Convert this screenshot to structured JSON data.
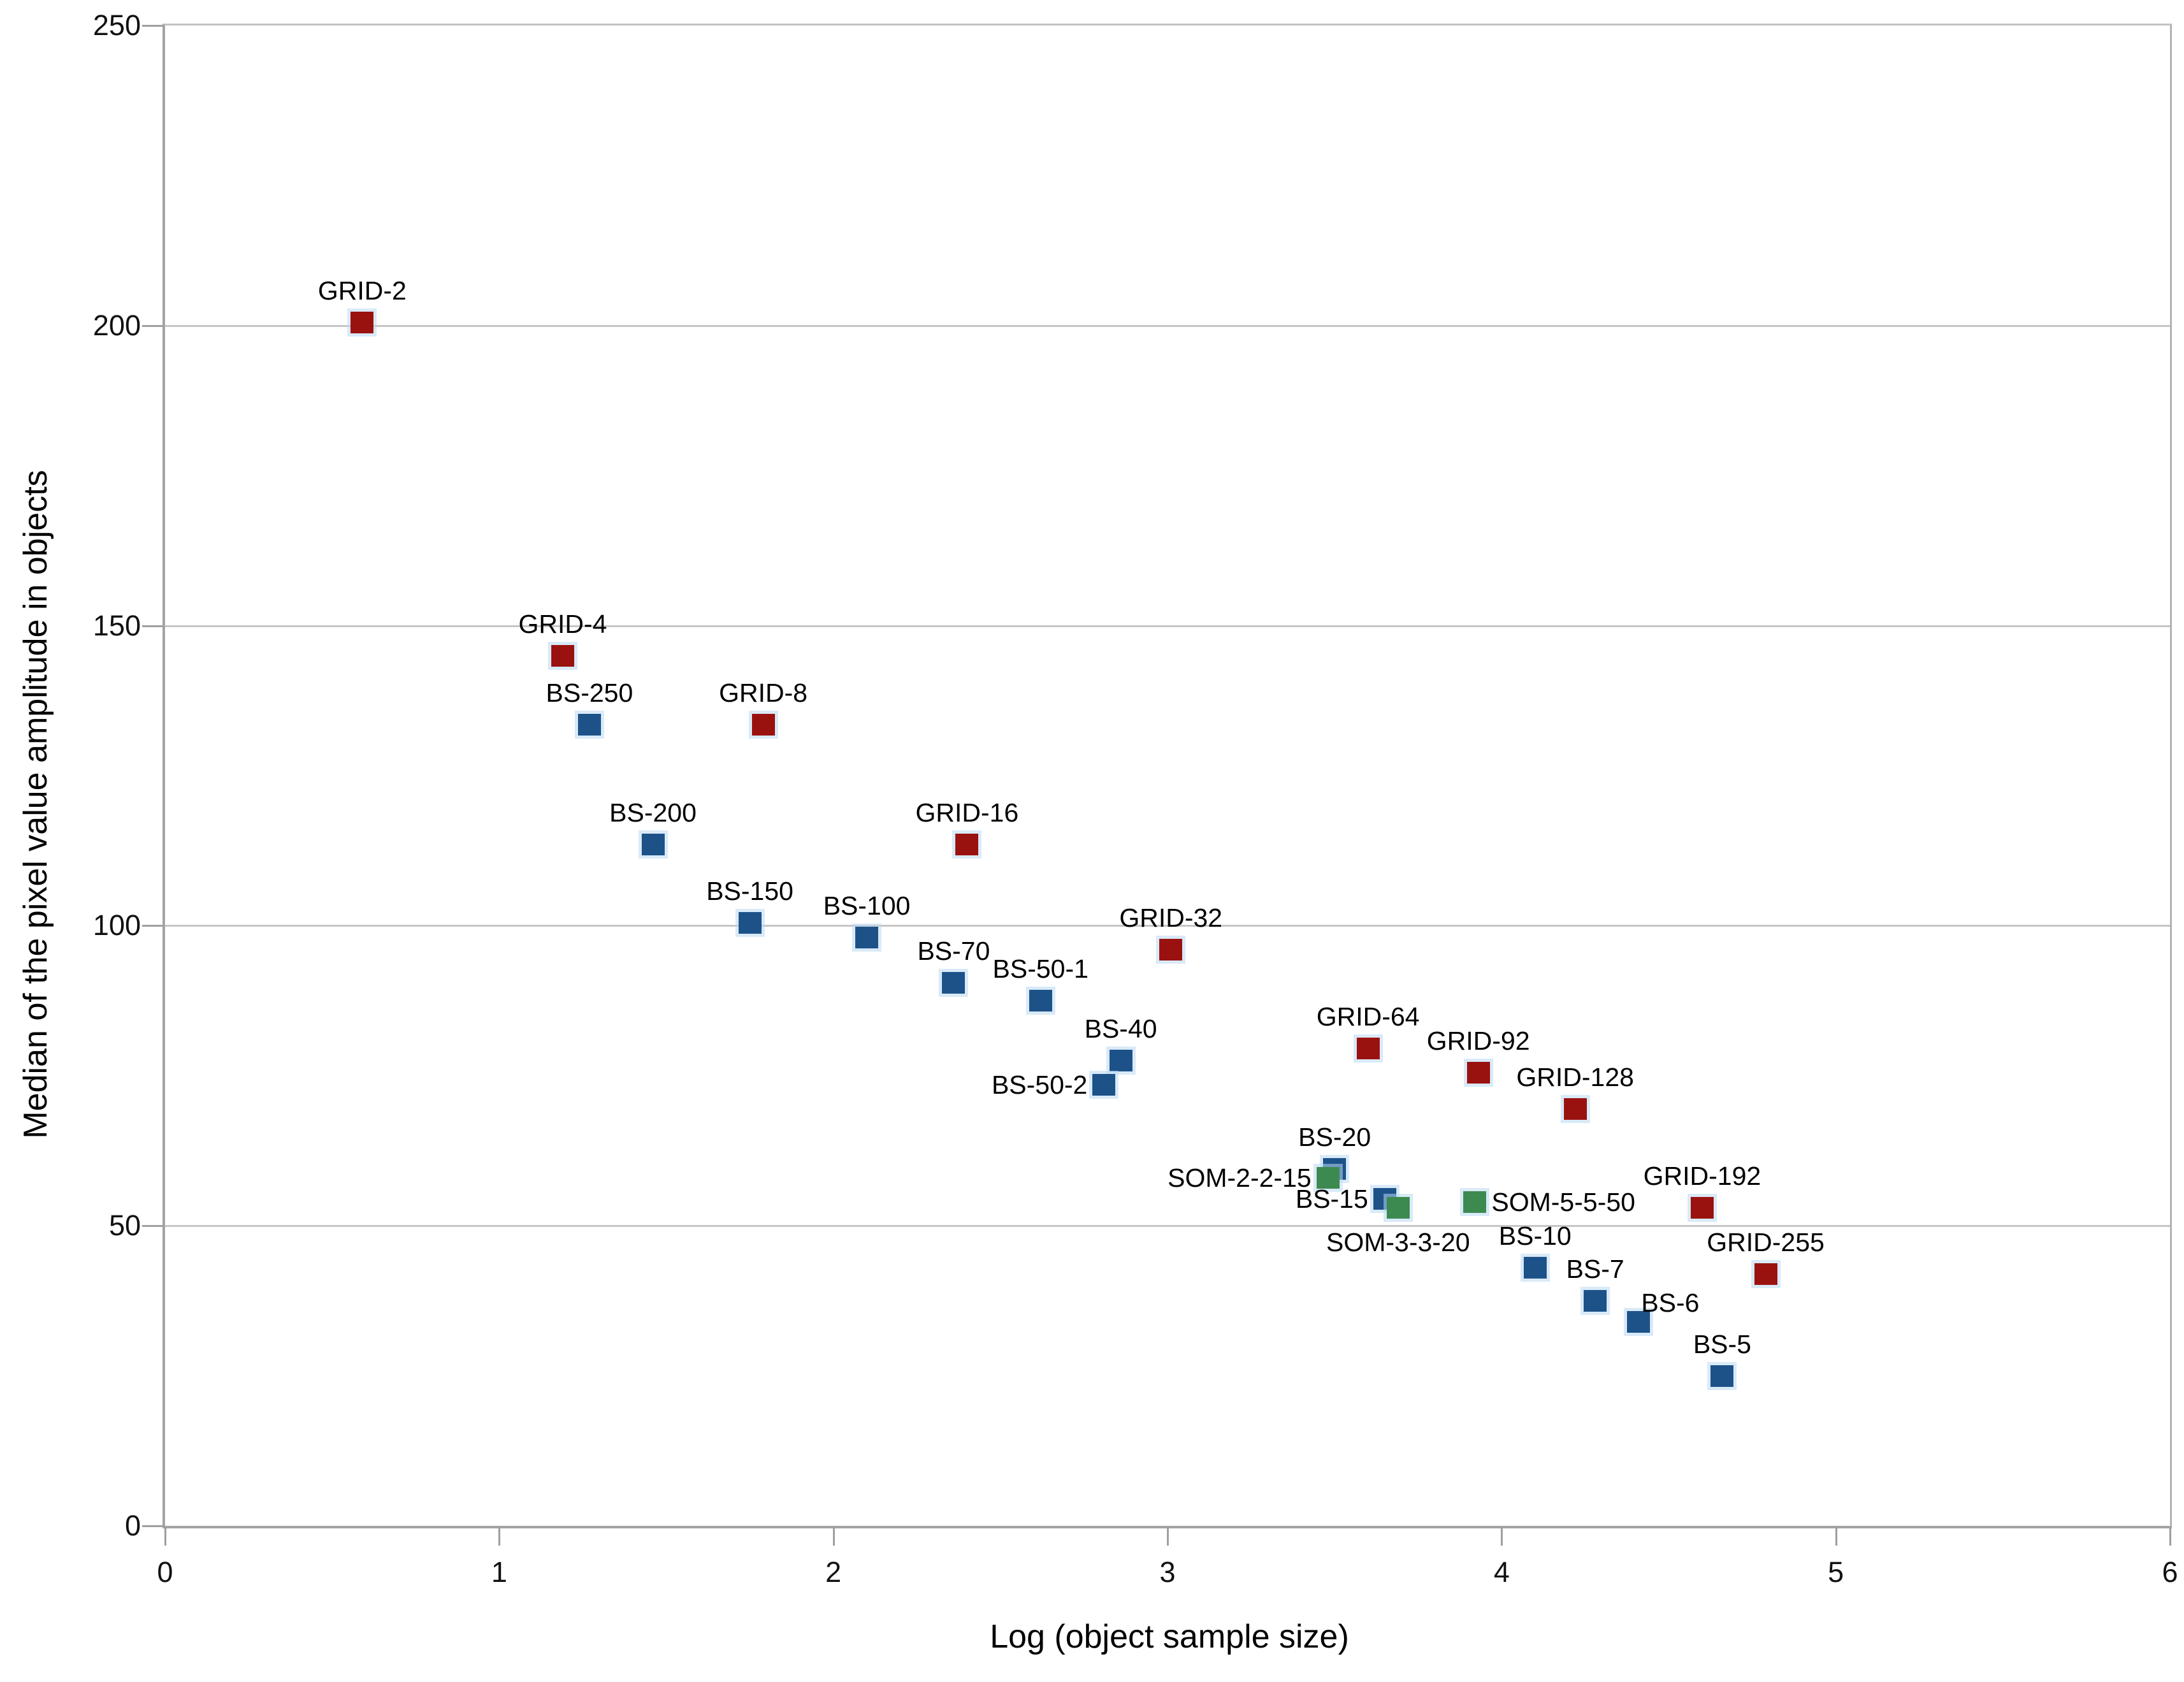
{
  "chart_data": {
    "type": "scatter",
    "title": "",
    "xlabel": "Log (object sample size)",
    "ylabel": "Median of the pixel value amplitude in objects",
    "xlim": [
      0,
      6
    ],
    "ylim": [
      0,
      250
    ],
    "x_ticks": [
      0,
      1,
      2,
      3,
      4,
      5,
      6
    ],
    "y_ticks": [
      0,
      50,
      100,
      150,
      200,
      250
    ],
    "grid": "horizontal-only",
    "legend": "none",
    "marker_shape": "square",
    "series_colors": {
      "GRID": "#9a120f",
      "BS": "#1d5289",
      "SOM": "#3d8a50"
    },
    "marker_halo_color": "#bad8f2",
    "points": [
      {
        "label": "GRID-2",
        "series": "GRID",
        "x": 0.59,
        "y": 200.5,
        "label_pos": "above"
      },
      {
        "label": "GRID-4",
        "series": "GRID",
        "x": 1.19,
        "y": 145.0,
        "label_pos": "above"
      },
      {
        "label": "BS-250",
        "series": "BS",
        "x": 1.27,
        "y": 133.5,
        "label_pos": "above"
      },
      {
        "label": "GRID-8",
        "series": "GRID",
        "x": 1.79,
        "y": 133.5,
        "label_pos": "above"
      },
      {
        "label": "BS-200",
        "series": "BS",
        "x": 1.46,
        "y": 113.5,
        "label_pos": "above"
      },
      {
        "label": "GRID-16",
        "series": "GRID",
        "x": 2.4,
        "y": 113.5,
        "label_pos": "above"
      },
      {
        "label": "BS-150",
        "series": "BS",
        "x": 1.75,
        "y": 100.5,
        "label_pos": "above"
      },
      {
        "label": "BS-100",
        "series": "BS",
        "x": 2.1,
        "y": 98.0,
        "label_pos": "above"
      },
      {
        "label": "GRID-32",
        "series": "GRID",
        "x": 3.01,
        "y": 96.0,
        "label_pos": "above"
      },
      {
        "label": "BS-70",
        "series": "BS",
        "x": 2.36,
        "y": 90.5,
        "label_pos": "above"
      },
      {
        "label": "BS-50-1",
        "series": "BS",
        "x": 2.62,
        "y": 87.5,
        "label_pos": "above"
      },
      {
        "label": "BS-40",
        "series": "BS",
        "x": 2.86,
        "y": 77.5,
        "label_pos": "above"
      },
      {
        "label": "BS-50-2",
        "series": "BS",
        "x": 2.81,
        "y": 73.5,
        "label_pos": "left"
      },
      {
        "label": "GRID-64",
        "series": "GRID",
        "x": 3.6,
        "y": 79.5,
        "label_pos": "above"
      },
      {
        "label": "GRID-92",
        "series": "GRID",
        "x": 3.93,
        "y": 75.5,
        "label_pos": "above"
      },
      {
        "label": "GRID-128",
        "series": "GRID",
        "x": 4.22,
        "y": 69.5,
        "label_pos": "above"
      },
      {
        "label": "BS-20",
        "series": "BS",
        "x": 3.5,
        "y": 59.5,
        "label_pos": "above"
      },
      {
        "label": "SOM-2-2-15",
        "series": "SOM",
        "x": 3.48,
        "y": 58.0,
        "label_pos": "left"
      },
      {
        "label": "BS-15",
        "series": "BS",
        "x": 3.65,
        "y": 54.5,
        "label_pos": "left"
      },
      {
        "label": "SOM-3-3-20",
        "series": "SOM",
        "x": 3.69,
        "y": 53.0,
        "label_pos": "below"
      },
      {
        "label": "SOM-5-5-50",
        "series": "SOM",
        "x": 3.92,
        "y": 54.0,
        "label_pos": "right"
      },
      {
        "label": "GRID-192",
        "series": "GRID",
        "x": 4.6,
        "y": 53.0,
        "label_pos": "above"
      },
      {
        "label": "BS-10",
        "series": "BS",
        "x": 4.1,
        "y": 43.0,
        "label_pos": "above"
      },
      {
        "label": "GRID-255",
        "series": "GRID",
        "x": 4.79,
        "y": 42.0,
        "label_pos": "above"
      },
      {
        "label": "BS-7",
        "series": "BS",
        "x": 4.28,
        "y": 37.5,
        "label_pos": "above"
      },
      {
        "label": "BS-6",
        "series": "BS",
        "x": 4.41,
        "y": 34.0,
        "label_pos": "above-right"
      },
      {
        "label": "BS-5",
        "series": "BS",
        "x": 4.66,
        "y": 25.0,
        "label_pos": "above"
      }
    ]
  }
}
